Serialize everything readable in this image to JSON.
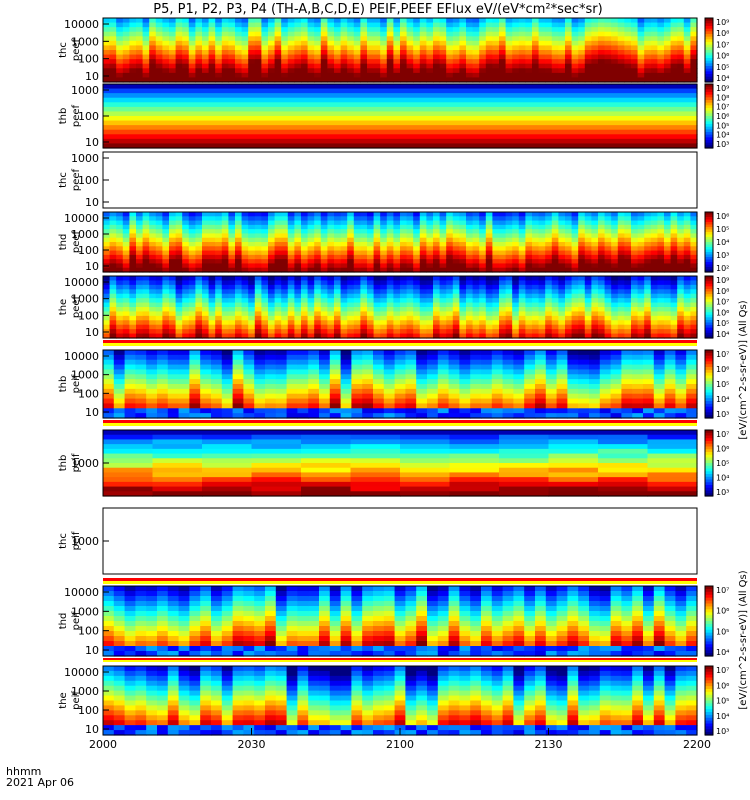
{
  "title": "P5, P1, P2, P3, P4 (TH-A,B,C,D,E) PEIF,PEEF EFlux eV/(eV*cm²*sec*sr)",
  "time_label": "hhmm",
  "date_label": "2021 Apr 06",
  "colorbar_units_top": "[eV/(cm^2-s-sr-eV)] (All Qs)",
  "colorbar_units_bottom": "[eV/(cm^2-s-sr-eV)] (All Qs)",
  "chart_data": {
    "type": "heatmap",
    "x_ticks": [
      "2000",
      "2030",
      "2100",
      "2130",
      "2200"
    ],
    "panels": [
      {
        "id": "thc-peef",
        "line1": "thc",
        "line2": "peef",
        "yticks": [
          "10000",
          "1000",
          "100",
          "10"
        ],
        "style": "burst",
        "base": 0.78,
        "cbar": [
          "10⁹",
          "10⁸",
          "10⁷",
          "10⁶",
          "10⁵",
          "10⁴"
        ],
        "cbar_name": "c1"
      },
      {
        "id": "thb-peef",
        "line1": "thb",
        "line2": "peef",
        "yticks": [
          "1000",
          "100",
          "10"
        ],
        "style": "smooth",
        "base": 0.5,
        "cbar": [
          "10⁹",
          "10⁸",
          "10⁷",
          "10⁶",
          "10⁵",
          "10⁴",
          "10³"
        ],
        "cbar_name": "c2"
      },
      {
        "id": "thc-peef-2",
        "line1": "thc",
        "line2": "peef",
        "yticks": [
          "1000",
          "100",
          "10"
        ],
        "style": "empty",
        "base": 0,
        "cbar": [],
        "cbar_name": ""
      },
      {
        "id": "thd-peef",
        "line1": "thd",
        "line2": "peef",
        "yticks": [
          "10000",
          "1000",
          "100",
          "10"
        ],
        "style": "burst",
        "base": 0.7,
        "cbar": [
          "10⁶",
          "10⁵",
          "10⁴",
          "10³",
          "10²"
        ],
        "cbar_name": "c3"
      },
      {
        "id": "the-peef",
        "line1": "the",
        "line2": "peef",
        "yticks": [
          "10000",
          "1000",
          "100",
          "10"
        ],
        "style": "burst",
        "base": 0.55,
        "cbar": [
          "10⁹",
          "10⁸",
          "10⁷",
          "10⁶",
          "10⁵",
          "10⁴"
        ],
        "cbar_name": "c4"
      },
      {
        "id": "thb-peif",
        "line1": "thb",
        "line2": "peif",
        "yticks": [
          "10000",
          "1000",
          "100",
          "10"
        ],
        "style": "blocky",
        "base": 0.6,
        "cbar": [
          "10⁷",
          "10⁶",
          "10⁵",
          "10⁴",
          "10³"
        ],
        "cbar_name": "c5"
      },
      {
        "id": "thc-peif",
        "line1": "thb",
        "line2": "peif",
        "yticks": [
          "1000"
        ],
        "style": "bands",
        "base": 0.5,
        "cbar": [
          "10⁷",
          "10⁶",
          "10⁵",
          "10⁴",
          "10³"
        ],
        "cbar_name": "c6"
      },
      {
        "id": "thc-peif-2",
        "line1": "thc",
        "line2": "peif",
        "yticks": [
          "1000"
        ],
        "style": "empty",
        "base": 0,
        "cbar": [],
        "cbar_name": ""
      },
      {
        "id": "thd-peif",
        "line1": "thd",
        "line2": "peif",
        "yticks": [
          "10000",
          "1000",
          "100",
          "10"
        ],
        "style": "blocky",
        "base": 0.62,
        "cbar": [
          "10⁷",
          "10⁶",
          "10⁵",
          "10⁴"
        ],
        "cbar_name": "c7"
      },
      {
        "id": "the-peif",
        "line1": "the",
        "line2": "peif",
        "yticks": [
          "10000",
          "1000",
          "100",
          "10"
        ],
        "style": "blocky",
        "base": 0.55,
        "cbar": [
          "10⁷",
          "10⁶",
          "10⁵",
          "10⁴",
          "10³"
        ],
        "cbar_name": "c8"
      }
    ]
  }
}
